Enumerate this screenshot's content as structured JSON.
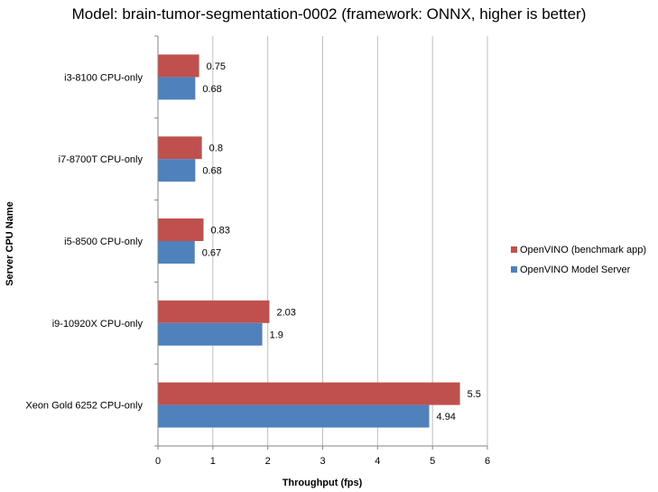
{
  "chart_data": {
    "type": "bar",
    "orientation": "horizontal",
    "title": "Model: brain-tumor-segmentation-0002 (framework: ONNX, higher is better)",
    "xlabel": "Throughput (fps)",
    "ylabel": "Server CPU Name",
    "xlim": [
      0,
      6
    ],
    "x_ticks": [
      "0",
      "1",
      "2",
      "3",
      "4",
      "5",
      "6"
    ],
    "grid": "vertical",
    "legend_position": "right",
    "categories": [
      "i3-8100 CPU-only",
      "i7-8700T CPU-only",
      "i5-8500 CPU-only",
      "i9-10920X CPU-only",
      "Xeon Gold 6252 CPU-only"
    ],
    "series": [
      {
        "name": "OpenVINO (benchmark app)",
        "color": "#c0504d",
        "values": [
          0.75,
          0.8,
          0.83,
          2.03,
          5.5
        ],
        "labels": [
          "0.75",
          "0.8",
          "0.83",
          "2.03",
          "5.5"
        ]
      },
      {
        "name": "OpenVINO Model Server",
        "color": "#4f81bd",
        "values": [
          0.68,
          0.68,
          0.67,
          1.9,
          4.94
        ],
        "labels": [
          "0.68",
          "0.68",
          "0.67",
          "1.9",
          "4.94"
        ]
      }
    ]
  }
}
